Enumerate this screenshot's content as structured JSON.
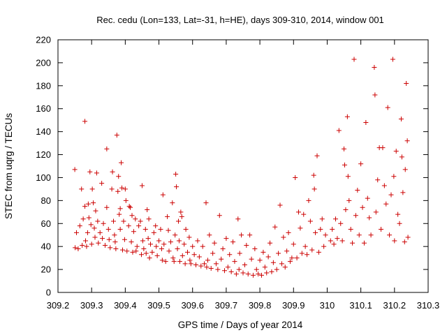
{
  "chart_data": {
    "type": "scatter",
    "title": "Rec. cedu (Lon=133, Lat=-31, h=HE), days 309-310, 2014, window 001",
    "xlabel": "GPS time / Days of year 2014",
    "ylabel": "STEC from uqrg / TECUs",
    "xlim": [
      309.2,
      310.3
    ],
    "ylim": [
      0,
      220
    ],
    "xticks": [
      "309.2",
      "309.3",
      "309.4",
      "309.5",
      "309.6",
      "309.7",
      "309.8",
      "309.9",
      "310",
      "310.1",
      "310.2",
      "310.3"
    ],
    "yticks": [
      "0",
      "20",
      "40",
      "60",
      "80",
      "100",
      "120",
      "140",
      "160",
      "180",
      "200",
      "220"
    ],
    "grid": false,
    "marker": "plus",
    "color": "#cc0000",
    "points": [
      [
        309.25,
        107
      ],
      [
        309.251,
        39
      ],
      [
        309.255,
        52
      ],
      [
        309.26,
        38
      ],
      [
        309.265,
        58
      ],
      [
        309.27,
        90
      ],
      [
        309.272,
        41
      ],
      [
        309.275,
        64
      ],
      [
        309.28,
        149
      ],
      [
        309.28,
        75
      ],
      [
        309.282,
        45
      ],
      [
        309.285,
        40
      ],
      [
        309.288,
        52
      ],
      [
        309.29,
        77
      ],
      [
        309.292,
        65
      ],
      [
        309.295,
        105
      ],
      [
        309.298,
        59
      ],
      [
        309.3,
        42
      ],
      [
        309.302,
        90
      ],
      [
        309.305,
        78
      ],
      [
        309.308,
        56
      ],
      [
        309.31,
        48
      ],
      [
        309.312,
        71
      ],
      [
        309.315,
        104
      ],
      [
        309.318,
        62
      ],
      [
        309.32,
        43
      ],
      [
        309.325,
        52
      ],
      [
        309.33,
        95
      ],
      [
        309.332,
        47
      ],
      [
        309.335,
        60
      ],
      [
        309.34,
        41
      ],
      [
        309.345,
        74
      ],
      [
        309.345,
        125
      ],
      [
        309.35,
        55
      ],
      [
        309.352,
        46
      ],
      [
        309.355,
        39
      ],
      [
        309.36,
        90
      ],
      [
        309.362,
        105
      ],
      [
        309.365,
        62
      ],
      [
        309.368,
        50
      ],
      [
        309.37,
        44
      ],
      [
        309.372,
        38
      ],
      [
        309.375,
        137
      ],
      [
        309.378,
        88
      ],
      [
        309.38,
        101
      ],
      [
        309.382,
        68
      ],
      [
        309.385,
        55
      ],
      [
        309.385,
        73
      ],
      [
        309.388,
        113
      ],
      [
        309.39,
        91
      ],
      [
        309.392,
        37
      ],
      [
        309.395,
        62
      ],
      [
        309.398,
        46
      ],
      [
        309.4,
        90
      ],
      [
        309.402,
        80
      ],
      [
        309.405,
        36
      ],
      [
        309.41,
        58
      ],
      [
        309.412,
        75
      ],
      [
        309.415,
        74
      ],
      [
        309.418,
        44
      ],
      [
        309.42,
        67
      ],
      [
        309.422,
        35
      ],
      [
        309.425,
        53
      ],
      [
        309.43,
        64
      ],
      [
        309.432,
        36
      ],
      [
        309.435,
        40
      ],
      [
        309.44,
        58
      ],
      [
        309.445,
        62
      ],
      [
        309.448,
        33
      ],
      [
        309.45,
        93
      ],
      [
        309.452,
        45
      ],
      [
        309.455,
        38
      ],
      [
        309.46,
        55
      ],
      [
        309.462,
        34
      ],
      [
        309.465,
        72
      ],
      [
        309.468,
        47
      ],
      [
        309.47,
        64
      ],
      [
        309.472,
        30
      ],
      [
        309.475,
        42
      ],
      [
        309.48,
        35
      ],
      [
        309.485,
        52
      ],
      [
        309.49,
        58
      ],
      [
        309.492,
        40
      ],
      [
        309.495,
        32
      ],
      [
        309.5,
        45
      ],
      [
        309.505,
        55
      ],
      [
        309.508,
        38
      ],
      [
        309.51,
        28
      ],
      [
        309.512,
        85
      ],
      [
        309.515,
        42
      ],
      [
        309.52,
        27
      ],
      [
        309.525,
        66
      ],
      [
        309.528,
        54
      ],
      [
        309.53,
        36
      ],
      [
        309.535,
        44
      ],
      [
        309.54,
        78
      ],
      [
        309.542,
        30
      ],
      [
        309.545,
        27
      ],
      [
        309.548,
        50
      ],
      [
        309.55,
        103
      ],
      [
        309.552,
        92
      ],
      [
        309.555,
        38
      ],
      [
        309.558,
        62
      ],
      [
        309.56,
        45
      ],
      [
        309.562,
        27
      ],
      [
        309.565,
        70
      ],
      [
        309.568,
        66
      ],
      [
        309.57,
        32
      ],
      [
        309.575,
        42
      ],
      [
        309.578,
        25
      ],
      [
        309.58,
        55
      ],
      [
        309.585,
        35
      ],
      [
        309.59,
        48
      ],
      [
        309.592,
        28
      ],
      [
        309.595,
        25
      ],
      [
        309.6,
        40
      ],
      [
        309.605,
        33
      ],
      [
        309.61,
        24
      ],
      [
        309.615,
        45
      ],
      [
        309.62,
        31
      ],
      [
        309.625,
        23
      ],
      [
        309.63,
        40
      ],
      [
        309.635,
        25
      ],
      [
        309.64,
        78
      ],
      [
        309.642,
        22
      ],
      [
        309.645,
        28
      ],
      [
        309.65,
        50
      ],
      [
        309.655,
        21
      ],
      [
        309.66,
        34
      ],
      [
        309.665,
        43
      ],
      [
        309.67,
        25
      ],
      [
        309.675,
        20
      ],
      [
        309.68,
        67
      ],
      [
        309.685,
        29
      ],
      [
        309.69,
        38
      ],
      [
        309.695,
        19
      ],
      [
        309.7,
        47
      ],
      [
        309.705,
        22
      ],
      [
        309.71,
        33
      ],
      [
        309.715,
        18
      ],
      [
        309.72,
        44
      ],
      [
        309.725,
        27
      ],
      [
        309.73,
        16
      ],
      [
        309.735,
        64
      ],
      [
        309.738,
        20
      ],
      [
        309.74,
        34
      ],
      [
        309.745,
        50
      ],
      [
        309.75,
        17
      ],
      [
        309.755,
        24
      ],
      [
        309.76,
        41
      ],
      [
        309.765,
        16
      ],
      [
        309.77,
        50
      ],
      [
        309.775,
        29
      ],
      [
        309.78,
        15
      ],
      [
        309.785,
        38
      ],
      [
        309.79,
        20
      ],
      [
        309.795,
        16
      ],
      [
        309.8,
        28
      ],
      [
        309.805,
        15
      ],
      [
        309.81,
        35
      ],
      [
        309.815,
        22
      ],
      [
        309.82,
        17
      ],
      [
        309.825,
        31
      ],
      [
        309.83,
        43
      ],
      [
        309.835,
        18
      ],
      [
        309.84,
        26
      ],
      [
        309.845,
        57
      ],
      [
        309.85,
        20
      ],
      [
        309.855,
        34
      ],
      [
        309.86,
        76
      ],
      [
        309.865,
        25
      ],
      [
        309.87,
        48
      ],
      [
        309.875,
        22
      ],
      [
        309.88,
        36
      ],
      [
        309.885,
        52
      ],
      [
        309.89,
        27
      ],
      [
        309.895,
        30
      ],
      [
        309.9,
        42
      ],
      [
        309.905,
        100
      ],
      [
        309.91,
        30
      ],
      [
        309.915,
        70
      ],
      [
        309.92,
        56
      ],
      [
        309.925,
        34
      ],
      [
        309.93,
        68
      ],
      [
        309.935,
        40
      ],
      [
        309.94,
        33
      ],
      [
        309.945,
        80
      ],
      [
        309.95,
        62
      ],
      [
        309.955,
        37
      ],
      [
        309.96,
        102
      ],
      [
        309.962,
        90
      ],
      [
        309.965,
        52
      ],
      [
        309.97,
        119
      ],
      [
        309.975,
        35
      ],
      [
        309.98,
        55
      ],
      [
        309.985,
        64
      ],
      [
        309.99,
        40
      ],
      [
        309.995,
        50
      ],
      [
        310.01,
        45
      ],
      [
        310.015,
        55
      ],
      [
        310.02,
        42
      ],
      [
        310.025,
        64
      ],
      [
        310.03,
        47
      ],
      [
        310.035,
        141
      ],
      [
        310.04,
        60
      ],
      [
        310.045,
        45
      ],
      [
        310.05,
        125
      ],
      [
        310.052,
        111
      ],
      [
        310.055,
        72
      ],
      [
        310.06,
        153
      ],
      [
        310.062,
        101
      ],
      [
        310.065,
        80
      ],
      [
        310.07,
        55
      ],
      [
        310.075,
        43
      ],
      [
        310.08,
        203
      ],
      [
        310.085,
        67
      ],
      [
        310.09,
        89
      ],
      [
        310.095,
        50
      ],
      [
        310.1,
        112
      ],
      [
        310.105,
        74
      ],
      [
        310.11,
        43
      ],
      [
        310.115,
        148
      ],
      [
        310.12,
        82
      ],
      [
        310.125,
        65
      ],
      [
        310.13,
        50
      ],
      [
        310.14,
        196
      ],
      [
        310.142,
        172
      ],
      [
        310.145,
        70
      ],
      [
        310.15,
        98
      ],
      [
        310.155,
        126
      ],
      [
        310.16,
        55
      ],
      [
        310.165,
        126
      ],
      [
        310.17,
        93
      ],
      [
        310.175,
        77
      ],
      [
        310.18,
        161
      ],
      [
        310.185,
        50
      ],
      [
        310.19,
        85
      ],
      [
        310.195,
        203
      ],
      [
        310.198,
        101
      ],
      [
        310.2,
        45
      ],
      [
        310.205,
        123
      ],
      [
        310.21,
        68
      ],
      [
        310.215,
        60
      ],
      [
        310.22,
        151
      ],
      [
        310.222,
        118
      ],
      [
        310.225,
        87
      ],
      [
        310.23,
        44
      ],
      [
        310.232,
        107
      ],
      [
        310.235,
        182
      ],
      [
        310.238,
        132
      ],
      [
        310.24,
        48
      ]
    ]
  }
}
